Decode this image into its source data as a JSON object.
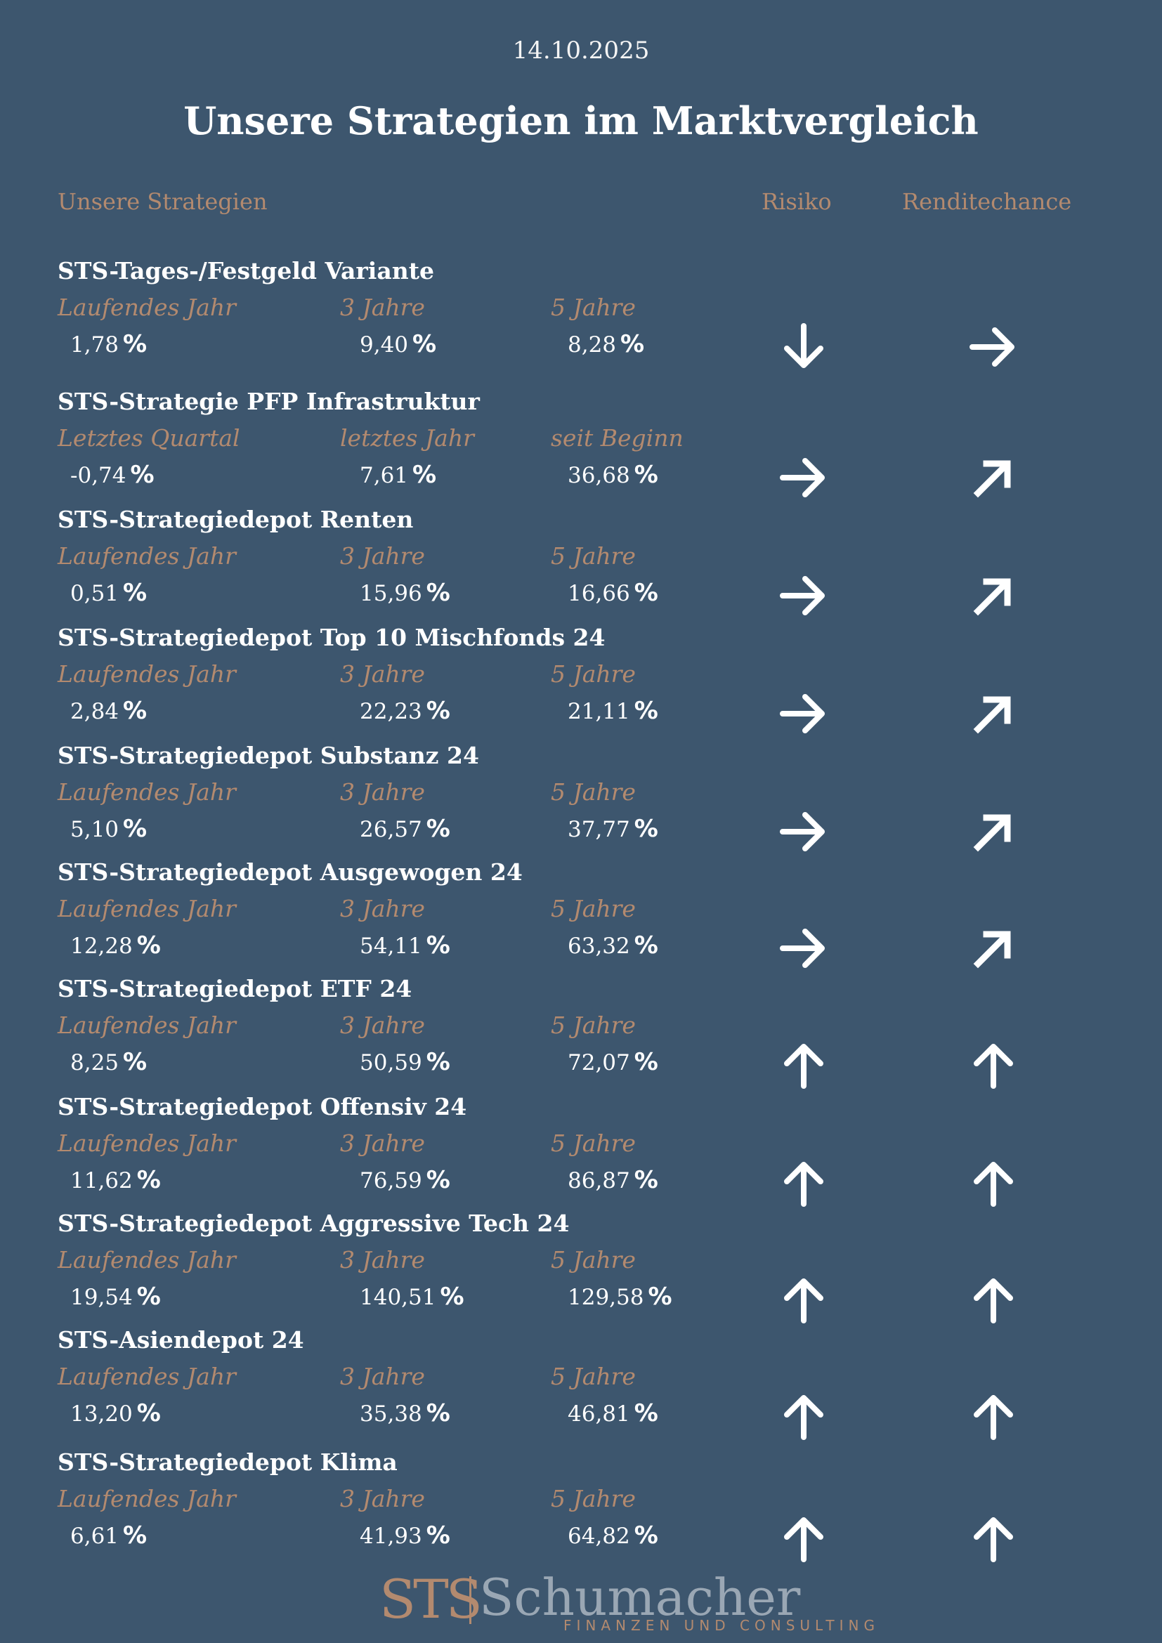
{
  "date": "14.10.2025",
  "title": "Unsere Strategien im Marktvergleich",
  "headers": {
    "strategies": "Unsere Strategien",
    "risk": "Risiko",
    "return": "Renditechance"
  },
  "strategies": [
    {
      "name": "STS-Tages-/Festgeld Variante",
      "labels": [
        "Laufendes Jahr",
        "3 Jahre",
        "5 Jahre"
      ],
      "values": [
        "1,78",
        "9,40",
        "8,28"
      ],
      "pct": "%",
      "risk": "down-icon",
      "return": "right-icon"
    },
    {
      "name": "STS-Strategie PFP Infrastruktur",
      "labels": [
        "Letztes Quartal",
        "letztes Jahr",
        "seit Beginn"
      ],
      "values": [
        "-0,74",
        "7,61",
        "36,68"
      ],
      "pct": "%",
      "risk": "right-icon",
      "return": "up-right-icon"
    },
    {
      "name": "STS-Strategiedepot Renten",
      "labels": [
        "Laufendes Jahr",
        "3 Jahre",
        "5 Jahre"
      ],
      "values": [
        "0,51",
        "15,96",
        "16,66"
      ],
      "pct": "%",
      "risk": "right-icon",
      "return": "up-right-icon"
    },
    {
      "name": "STS-Strategiedepot Top 10 Mischfonds 24",
      "labels": [
        "Laufendes Jahr",
        "3 Jahre",
        "5 Jahre"
      ],
      "values": [
        "2,84",
        "22,23",
        "21,11"
      ],
      "pct": "%",
      "risk": "right-icon",
      "return": "up-right-icon"
    },
    {
      "name": "STS-Strategiedepot Substanz 24",
      "labels": [
        "Laufendes Jahr",
        "3 Jahre",
        "5 Jahre"
      ],
      "values": [
        "5,10",
        "26,57",
        "37,77"
      ],
      "pct": "%",
      "risk": "right-icon",
      "return": "up-right-icon"
    },
    {
      "name": "STS-Strategiedepot Ausgewogen 24",
      "labels": [
        "Laufendes Jahr",
        "3 Jahre",
        "5 Jahre"
      ],
      "values": [
        "12,28",
        "54,11",
        "63,32"
      ],
      "pct": "%",
      "risk": "right-icon",
      "return": "up-right-icon"
    },
    {
      "name": "STS-Strategiedepot ETF 24",
      "labels": [
        "Laufendes Jahr",
        "3 Jahre",
        "5 Jahre"
      ],
      "values": [
        "8,25",
        "50,59",
        "72,07"
      ],
      "pct": "%",
      "risk": "up-icon",
      "return": "up-icon"
    },
    {
      "name": "STS-Strategiedepot Offensiv 24",
      "labels": [
        "Laufendes Jahr",
        "3 Jahre",
        "5 Jahre"
      ],
      "values": [
        "11,62",
        "76,59",
        "86,87"
      ],
      "pct": "%",
      "risk": "up-icon",
      "return": "up-icon"
    },
    {
      "name": "STS-Strategiedepot Aggressive Tech 24",
      "labels": [
        "Laufendes Jahr",
        "3 Jahre",
        "5 Jahre"
      ],
      "values": [
        "19,54",
        "140,51",
        "129,58"
      ],
      "pct": "%",
      "risk": "up-icon",
      "return": "up-icon"
    },
    {
      "name": "STS-Asiendepot 24",
      "labels": [
        "Laufendes Jahr",
        "3 Jahre",
        "5 Jahre"
      ],
      "values": [
        "13,20",
        "35,38",
        "46,81"
      ],
      "pct": "%",
      "risk": "up-icon",
      "return": "up-icon"
    },
    {
      "name": "STS-Strategiedepot Klima",
      "labels": [
        "Laufendes Jahr",
        "3 Jahre",
        "5 Jahre"
      ],
      "values": [
        "6,61",
        "41,93",
        "64,82"
      ],
      "pct": "%",
      "risk": "up-icon",
      "return": "up-icon"
    }
  ],
  "logo": {
    "mark": "STS",
    "name": "Schumacher",
    "tagline": "FINANZEN UND CONSULTING"
  },
  "colors": {
    "background": "#3d566e",
    "accent": "#b38a6f",
    "text": "#ffffff"
  }
}
